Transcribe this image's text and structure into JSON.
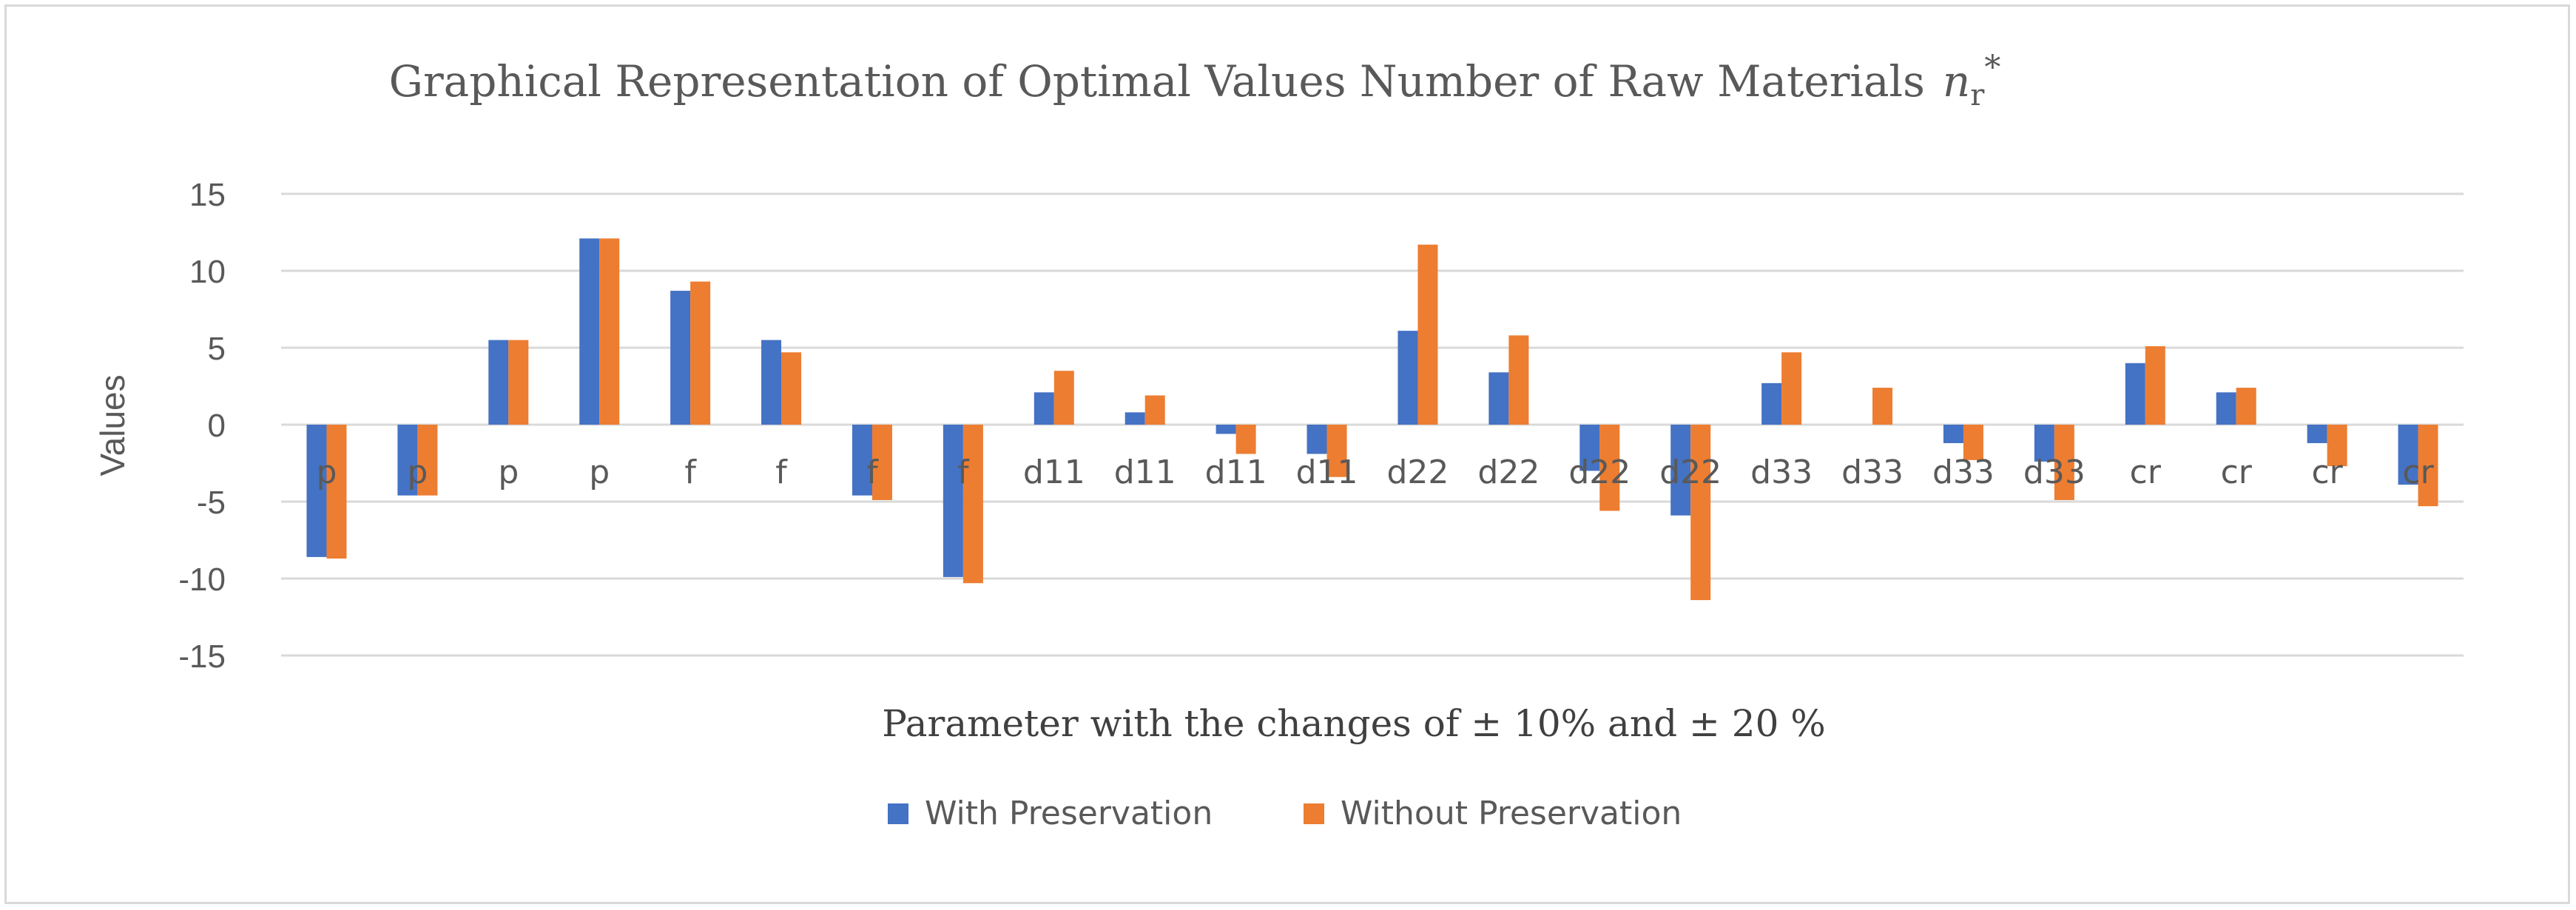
{
  "chart_data": {
    "type": "bar",
    "title_main": "Graphical Representation of Optimal Values Number of Raw Materials",
    "title_symbol": "n",
    "title_subscript": "r",
    "title_superscript": "*",
    "ylabel": "Values",
    "xlabel": "Parameter with the changes of ± 10% and ± 20 %",
    "ylim": [
      -15,
      15
    ],
    "yticks": [
      15,
      10,
      5,
      0,
      -5,
      -10,
      -15
    ],
    "grid": true,
    "legend_position": "bottom",
    "categories": [
      "p",
      "p",
      "p",
      "p",
      "f",
      "f",
      "f",
      "f",
      "d11",
      "d11",
      "d11",
      "d11",
      "d22",
      "d22",
      "d22",
      "d22",
      "d33",
      "d33",
      "d33",
      "d33",
      "cr",
      "cr",
      "cr",
      "cr"
    ],
    "series": [
      {
        "name": "With Preservation",
        "color": "#4472c4",
        "values": [
          -8.6,
          -4.6,
          5.5,
          12.1,
          8.7,
          5.5,
          -4.6,
          -9.9,
          2.1,
          0.8,
          -0.6,
          -1.9,
          6.1,
          3.4,
          -3.0,
          -5.9,
          2.7,
          0.0,
          -1.2,
          -2.4,
          4.0,
          2.1,
          -1.2,
          -3.9
        ]
      },
      {
        "name": "Without Preservation",
        "color": "#ed7d31",
        "values": [
          -8.7,
          -4.6,
          5.5,
          12.1,
          9.3,
          4.7,
          -4.9,
          -10.3,
          3.5,
          1.9,
          -1.9,
          -3.4,
          11.7,
          5.8,
          -5.6,
          -11.4,
          4.7,
          2.4,
          -2.3,
          -4.9,
          5.1,
          2.4,
          -2.7,
          -5.3
        ]
      }
    ]
  },
  "colors": {
    "grid": "#d9d9d9",
    "text": "#595959"
  }
}
